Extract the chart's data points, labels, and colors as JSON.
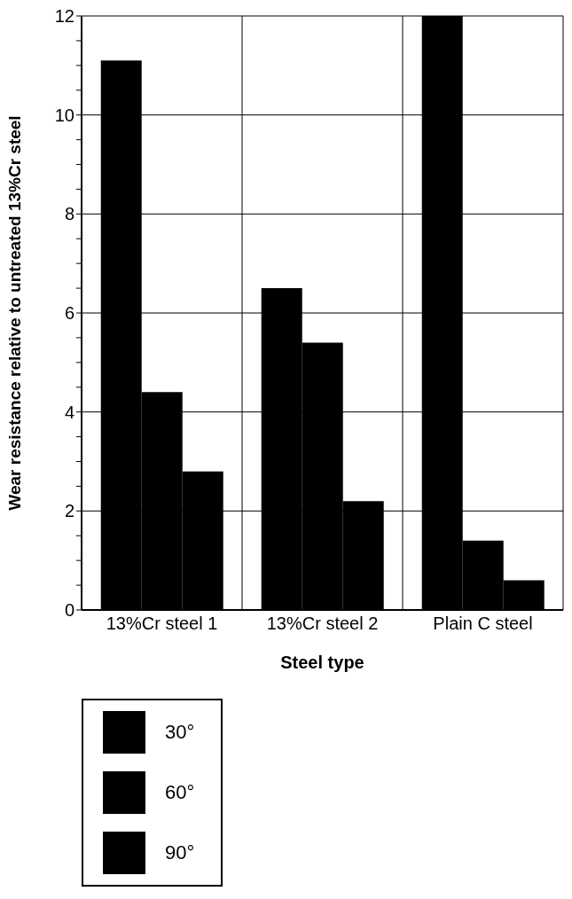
{
  "chart_data": {
    "type": "bar",
    "xlabel": "Steel type",
    "ylabel": "Wear resistance relative to untreated 13%Cr steel",
    "categories": [
      "13%Cr steel 1",
      "13%Cr steel 2",
      "Plain C steel"
    ],
    "series": [
      {
        "name": "30°",
        "color": "#000000",
        "values": [
          11.1,
          6.5,
          12
        ]
      },
      {
        "name": "60°",
        "color": "#000000",
        "values": [
          4.4,
          5.4,
          1.4
        ]
      },
      {
        "name": "90°",
        "color": "#000000",
        "values": [
          2.8,
          2.2,
          0.6
        ]
      }
    ],
    "ylim": [
      0,
      12
    ],
    "yticks": [
      0,
      {
        "value": 0.5,
        "label": null
      },
      {
        "value": 1,
        "label": null
      },
      {
        "value": 1.5,
        "label": null
      },
      2,
      {
        "value": 2.5,
        "label": null
      },
      {
        "value": 3,
        "label": null
      },
      {
        "value": 3.5,
        "label": null
      },
      4,
      {
        "value": 4.5,
        "label": null
      },
      {
        "value": 5,
        "label": null
      },
      {
        "value": 5.5,
        "label": null
      },
      6,
      {
        "value": 6.5,
        "label": null
      },
      {
        "value": 7,
        "label": null
      },
      {
        "value": 7.5,
        "label": null
      },
      8,
      {
        "value": 8.5,
        "label": null
      },
      {
        "value": 9,
        "label": null
      },
      {
        "value": 9.5,
        "label": null
      },
      10,
      {
        "value": 10.5,
        "label": null
      },
      {
        "value": 11,
        "label": null
      },
      {
        "value": 11.5,
        "label": null
      },
      12
    ],
    "grid": true,
    "legend": "bottom left"
  }
}
